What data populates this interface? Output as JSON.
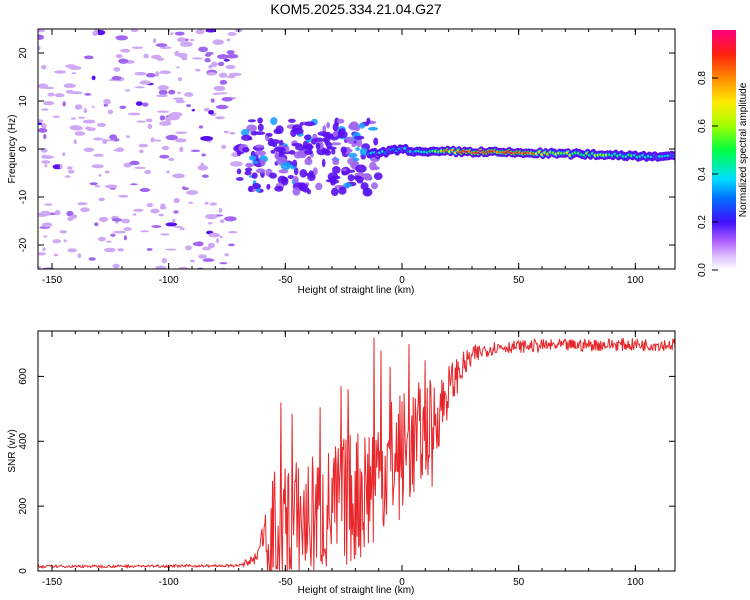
{
  "title": "KOM5.2025.334.21.04.G27",
  "colors": {
    "line": "#e8262a",
    "blob_light": "#cfa8f5",
    "blob_mid": "#a066f0",
    "blob_deep": "#5a10f0",
    "frame": "#000000",
    "background": "#ffffff"
  },
  "chart_data": [
    {
      "type": "heatmap",
      "name": "spectrogram",
      "xlabel": "Height of straight line (km)",
      "ylabel": "Frequency (Hz)",
      "xlim": [
        -156,
        117
      ],
      "ylim": [
        -25,
        25
      ],
      "x_ticks": [
        -150,
        -100,
        -50,
        0,
        50,
        100
      ],
      "x_tick_labels": [
        "-150",
        "-100",
        "-50",
        "0",
        "50",
        "100"
      ],
      "y_ticks": [
        -20,
        -10,
        0,
        10,
        20
      ],
      "y_tick_labels": [
        "-20",
        "-10",
        "0",
        "10",
        "20"
      ],
      "signal_track": {
        "description": "strong narrow-band signal near 0 Hz",
        "x": [
          -14,
          0,
          10,
          20,
          30,
          40,
          50,
          60,
          70,
          80,
          90,
          100,
          110,
          117
        ],
        "freq": [
          -1.2,
          0.0,
          -0.8,
          -0.5,
          -0.6,
          -0.7,
          -0.8,
          -0.9,
          -1.0,
          -1.1,
          -1.2,
          -1.4,
          -1.5,
          -1.6
        ],
        "amplitude": [
          0.3,
          0.35,
          0.45,
          0.75,
          0.92,
          0.9,
          0.85,
          0.7,
          0.6,
          0.55,
          0.5,
          0.42,
          0.36,
          0.3
        ]
      },
      "noise_region_x": [
        -156,
        -70
      ],
      "scatter_region_x": [
        -70,
        -10
      ],
      "colorbar": {
        "label": "Normalized spectral amplitude",
        "range": [
          0,
          1
        ],
        "ticks": [
          0.0,
          0.2,
          0.4,
          0.6,
          0.8
        ],
        "tick_labels": [
          "0.0",
          "0.2",
          "0.4",
          "0.6",
          "0.8"
        ],
        "colormap": "rainbow (white-violet-blue-cyan-green-yellow-red-magenta)"
      }
    },
    {
      "type": "line",
      "name": "snr",
      "xlabel": "Height of straight line (km)",
      "ylabel": "SNR (v/v)",
      "xlim": [
        -156,
        117
      ],
      "ylim": [
        0,
        740
      ],
      "x_ticks": [
        -150,
        -100,
        -50,
        0,
        50,
        100
      ],
      "x_tick_labels": [
        "-150",
        "-100",
        "-50",
        "0",
        "50",
        "100"
      ],
      "y_ticks": [
        0,
        200,
        400,
        600
      ],
      "y_tick_labels": [
        "0",
        "200",
        "400",
        "600"
      ],
      "envelope": {
        "x": [
          -156,
          -70,
          -62,
          -58,
          -55,
          -50,
          -40,
          -30,
          -20,
          -14,
          -10,
          0,
          10,
          15,
          20,
          25,
          30,
          35,
          40,
          50,
          60,
          70,
          80,
          90,
          100,
          117
        ],
        "baseline": [
          10,
          12,
          20,
          60,
          110,
          130,
          160,
          190,
          230,
          270,
          300,
          360,
          430,
          480,
          560,
          620,
          660,
          680,
          690,
          692,
          695,
          695,
          697,
          698,
          698,
          698
        ],
        "spread": [
          8,
          8,
          40,
          160,
          200,
          210,
          200,
          200,
          210,
          230,
          230,
          200,
          160,
          120,
          80,
          50,
          35,
          25,
          20,
          20,
          20,
          20,
          20,
          20,
          20,
          20
        ]
      },
      "peaks": [
        {
          "x": -52,
          "y": 520
        },
        {
          "x": -47,
          "y": 485
        },
        {
          "x": -35,
          "y": 505
        },
        {
          "x": -26,
          "y": 570
        },
        {
          "x": -23,
          "y": 560
        },
        {
          "x": -12,
          "y": 720
        },
        {
          "x": -9,
          "y": 680
        },
        {
          "x": -5,
          "y": 630
        },
        {
          "x": 3,
          "y": 700
        },
        {
          "x": 10,
          "y": 650
        },
        {
          "x": 13,
          "y": 260
        }
      ]
    }
  ]
}
